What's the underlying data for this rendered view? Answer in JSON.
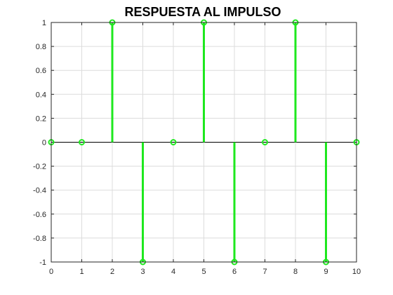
{
  "chart_data": {
    "type": "stem",
    "title": "RESPUESTA AL IMPULSO",
    "xlabel": "",
    "ylabel": "",
    "x": [
      0,
      1,
      2,
      3,
      4,
      5,
      6,
      7,
      8,
      9,
      10
    ],
    "y": [
      0,
      0,
      1,
      -1,
      0,
      1,
      -1,
      0,
      1,
      -1,
      0
    ],
    "xlim": [
      0,
      10
    ],
    "ylim": [
      -1,
      1
    ],
    "xticks": [
      0,
      1,
      2,
      3,
      4,
      5,
      6,
      7,
      8,
      9,
      10
    ],
    "yticks": [
      1,
      0.8,
      0.6,
      0.4,
      0.2,
      0,
      -0.2,
      -0.4,
      -0.6,
      -0.8,
      -1
    ],
    "grid": true,
    "marker": "circle",
    "colors": {
      "stem": "#1ee81e",
      "grid": "#dcdcdc",
      "axes": "#262626",
      "baseline": "#000000"
    }
  }
}
